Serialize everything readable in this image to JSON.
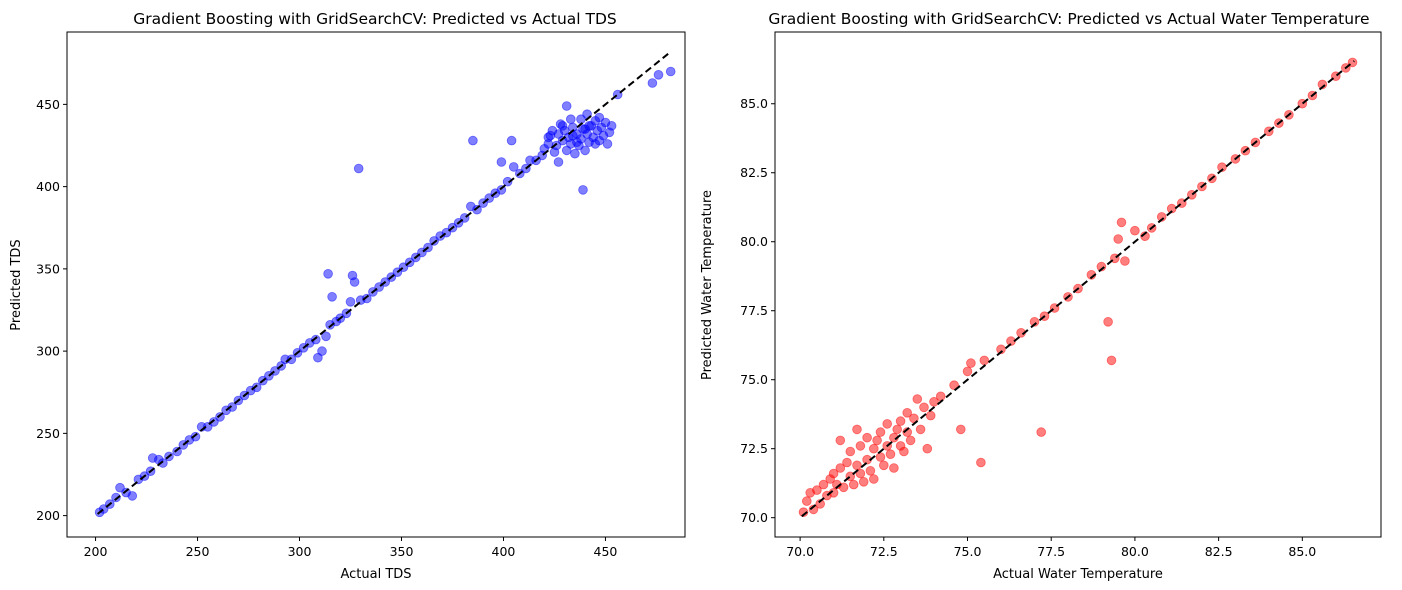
{
  "chart_data": [
    {
      "type": "scatter",
      "title": "Gradient Boosting with GridSearchCV: Predicted vs Actual TDS",
      "xlabel": "Actual TDS",
      "ylabel": "Predicted TDS",
      "xlim": [
        186,
        489
      ],
      "ylim": [
        187,
        494
      ],
      "xticks": [
        200,
        250,
        300,
        350,
        400,
        450
      ],
      "yticks": [
        200,
        250,
        300,
        350,
        400,
        450
      ],
      "tick_labels_x": [
        "200",
        "250",
        "300",
        "350",
        "400",
        "450"
      ],
      "tick_labels_y": [
        "200",
        "250",
        "300",
        "350",
        "400",
        "450"
      ],
      "marker_color": "#0000ff",
      "marker_alpha": 0.5,
      "reference_line": {
        "from": [
          201,
          201
        ],
        "to": [
          482,
          482
        ],
        "style": "dashed",
        "color": "#000000"
      },
      "grid": false,
      "series": [
        {
          "color": "#0000ff",
          "points": [
            [
              202,
              202
            ],
            [
              204,
              204
            ],
            [
              207,
              207
            ],
            [
              210,
              211
            ],
            [
              212,
              217
            ],
            [
              215,
              214
            ],
            [
              218,
              212
            ],
            [
              221,
              222
            ],
            [
              224,
              224
            ],
            [
              227,
              227
            ],
            [
              228,
              235
            ],
            [
              231,
              234
            ],
            [
              233,
              232
            ],
            [
              236,
              236
            ],
            [
              240,
              239
            ],
            [
              243,
              243
            ],
            [
              246,
              246
            ],
            [
              249,
              248
            ],
            [
              252,
              254
            ],
            [
              255,
              254
            ],
            [
              258,
              257
            ],
            [
              261,
              260
            ],
            [
              264,
              264
            ],
            [
              267,
              266
            ],
            [
              270,
              270
            ],
            [
              273,
              273
            ],
            [
              276,
              276
            ],
            [
              279,
              278
            ],
            [
              282,
              282
            ],
            [
              285,
              285
            ],
            [
              288,
              288
            ],
            [
              291,
              291
            ],
            [
              293,
              295
            ],
            [
              296,
              295
            ],
            [
              299,
              299
            ],
            [
              302,
              302
            ],
            [
              305,
              305
            ],
            [
              308,
              307
            ],
            [
              309,
              296
            ],
            [
              311,
              300
            ],
            [
              313,
              309
            ],
            [
              314,
              347
            ],
            [
              315,
              316
            ],
            [
              316,
              333
            ],
            [
              318,
              318
            ],
            [
              320,
              320
            ],
            [
              323,
              323
            ],
            [
              325,
              330
            ],
            [
              326,
              346
            ],
            [
              327,
              342
            ],
            [
              329,
              411
            ],
            [
              330,
              331
            ],
            [
              333,
              332
            ],
            [
              336,
              336
            ],
            [
              339,
              339
            ],
            [
              342,
              342
            ],
            [
              345,
              345
            ],
            [
              348,
              348
            ],
            [
              351,
              351
            ],
            [
              354,
              354
            ],
            [
              357,
              357
            ],
            [
              360,
              360
            ],
            [
              363,
              363
            ],
            [
              366,
              367
            ],
            [
              369,
              370
            ],
            [
              372,
              372
            ],
            [
              375,
              375
            ],
            [
              378,
              378
            ],
            [
              381,
              381
            ],
            [
              384,
              388
            ],
            [
              385,
              428
            ],
            [
              387,
              386
            ],
            [
              390,
              390
            ],
            [
              393,
              393
            ],
            [
              396,
              396
            ],
            [
              399,
              398
            ],
            [
              399,
              415
            ],
            [
              402,
              403
            ],
            [
              404,
              428
            ],
            [
              405,
              412
            ],
            [
              408,
              408
            ],
            [
              411,
              411
            ],
            [
              413,
              416
            ],
            [
              416,
              416
            ],
            [
              419,
              419
            ],
            [
              420,
              423
            ],
            [
              422,
              426
            ],
            [
              423,
              431
            ],
            [
              424,
              434
            ],
            [
              425,
              421
            ],
            [
              426,
              425
            ],
            [
              427,
              432
            ],
            [
              428,
              438
            ],
            [
              429,
              428
            ],
            [
              430,
              434
            ],
            [
              431,
              422
            ],
            [
              432,
              430
            ],
            [
              433,
              426
            ],
            [
              434,
              436
            ],
            [
              435,
              420
            ],
            [
              436,
              432
            ],
            [
              437,
              425
            ],
            [
              438,
              441
            ],
            [
              438,
              429
            ],
            [
              439,
              435
            ],
            [
              439,
              398
            ],
            [
              440,
              422
            ],
            [
              441,
              444
            ],
            [
              441,
              432
            ],
            [
              442,
              427
            ],
            [
              443,
              437
            ],
            [
              444,
              430
            ],
            [
              445,
              440
            ],
            [
              446,
              434
            ],
            [
              447,
              428
            ],
            [
              448,
              436
            ],
            [
              449,
              431
            ],
            [
              450,
              439
            ],
            [
              451,
              426
            ],
            [
              452,
              433
            ],
            [
              453,
              437
            ],
            [
              456,
              456
            ],
            [
              431,
              449
            ],
            [
              427,
              415
            ],
            [
              433,
              441
            ],
            [
              436,
              427
            ],
            [
              422,
              430
            ],
            [
              440,
              435
            ],
            [
              445,
              426
            ],
            [
              434,
              431
            ],
            [
              429,
              437
            ],
            [
              447,
              442
            ],
            [
              442,
              437
            ],
            [
              473,
              463
            ],
            [
              476,
              468
            ],
            [
              482,
              470
            ]
          ]
        }
      ]
    },
    {
      "type": "scatter",
      "title": "Gradient Boosting with GridSearchCV: Predicted vs Actual Water Temperature",
      "xlabel": "Actual Water Temperature",
      "ylabel": "Predicted Water Temperature",
      "xlim": [
        69.25,
        87.35
      ],
      "ylim": [
        69.3,
        87.6
      ],
      "xticks": [
        70.0,
        72.5,
        75.0,
        77.5,
        80.0,
        82.5,
        85.0
      ],
      "yticks": [
        70.0,
        72.5,
        75.0,
        77.5,
        80.0,
        82.5,
        85.0
      ],
      "tick_labels_x": [
        "70.0",
        "72.5",
        "75.0",
        "77.5",
        "80.0",
        "82.5",
        "85.0"
      ],
      "tick_labels_y": [
        "70.0",
        "72.5",
        "75.0",
        "77.5",
        "80.0",
        "82.5",
        "85.0"
      ],
      "marker_color": "#ff0000",
      "marker_alpha": 0.5,
      "reference_line": {
        "from": [
          70.05,
          70.05
        ],
        "to": [
          86.55,
          86.55
        ],
        "style": "dashed",
        "color": "#000000"
      },
      "grid": false,
      "series": [
        {
          "color": "#ff0000",
          "points": [
            [
              70.1,
              70.2
            ],
            [
              70.2,
              70.6
            ],
            [
              70.3,
              70.9
            ],
            [
              70.4,
              70.3
            ],
            [
              70.5,
              71.0
            ],
            [
              70.6,
              70.5
            ],
            [
              70.7,
              71.2
            ],
            [
              70.8,
              70.8
            ],
            [
              70.9,
              71.4
            ],
            [
              71.0,
              70.9
            ],
            [
              71.0,
              71.6
            ],
            [
              71.1,
              71.2
            ],
            [
              71.2,
              72.8
            ],
            [
              71.2,
              71.8
            ],
            [
              71.3,
              71.1
            ],
            [
              71.4,
              72.0
            ],
            [
              71.5,
              71.5
            ],
            [
              71.5,
              72.4
            ],
            [
              71.6,
              71.2
            ],
            [
              71.7,
              71.9
            ],
            [
              71.7,
              73.2
            ],
            [
              71.8,
              71.6
            ],
            [
              71.8,
              72.6
            ],
            [
              71.9,
              71.3
            ],
            [
              72.0,
              72.1
            ],
            [
              72.0,
              72.9
            ],
            [
              72.1,
              71.7
            ],
            [
              72.2,
              72.5
            ],
            [
              72.2,
              71.4
            ],
            [
              72.3,
              72.8
            ],
            [
              72.4,
              72.2
            ],
            [
              72.4,
              73.1
            ],
            [
              72.5,
              71.9
            ],
            [
              72.6,
              72.6
            ],
            [
              72.6,
              73.4
            ],
            [
              72.7,
              72.3
            ],
            [
              72.8,
              72.9
            ],
            [
              72.8,
              71.8
            ],
            [
              72.9,
              73.2
            ],
            [
              73.0,
              72.6
            ],
            [
              73.0,
              73.5
            ],
            [
              73.1,
              72.4
            ],
            [
              73.2,
              73.1
            ],
            [
              73.2,
              73.8
            ],
            [
              73.3,
              72.8
            ],
            [
              73.4,
              73.6
            ],
            [
              73.5,
              74.3
            ],
            [
              73.6,
              73.2
            ],
            [
              73.7,
              74.0
            ],
            [
              73.8,
              72.5
            ],
            [
              73.9,
              73.7
            ],
            [
              74.0,
              74.2
            ],
            [
              74.2,
              74.4
            ],
            [
              74.6,
              74.8
            ],
            [
              74.8,
              73.2
            ],
            [
              75.0,
              75.3
            ],
            [
              75.1,
              75.6
            ],
            [
              75.4,
              72.0
            ],
            [
              75.5,
              75.7
            ],
            [
              76.0,
              76.1
            ],
            [
              76.3,
              76.4
            ],
            [
              76.6,
              76.7
            ],
            [
              77.0,
              77.1
            ],
            [
              77.2,
              73.1
            ],
            [
              77.3,
              77.3
            ],
            [
              77.6,
              77.6
            ],
            [
              78.0,
              78.0
            ],
            [
              78.3,
              78.3
            ],
            [
              78.7,
              78.8
            ],
            [
              79.0,
              79.1
            ],
            [
              79.2,
              77.1
            ],
            [
              79.3,
              75.7
            ],
            [
              79.4,
              79.4
            ],
            [
              79.5,
              80.1
            ],
            [
              79.6,
              80.7
            ],
            [
              79.7,
              79.3
            ],
            [
              80.0,
              80.4
            ],
            [
              80.3,
              80.2
            ],
            [
              80.5,
              80.5
            ],
            [
              80.8,
              80.9
            ],
            [
              81.1,
              81.2
            ],
            [
              81.4,
              81.4
            ],
            [
              81.7,
              81.7
            ],
            [
              82.0,
              82.0
            ],
            [
              82.3,
              82.3
            ],
            [
              82.6,
              82.7
            ],
            [
              83.0,
              83.0
            ],
            [
              83.3,
              83.3
            ],
            [
              83.6,
              83.6
            ],
            [
              84.0,
              84.0
            ],
            [
              84.3,
              84.3
            ],
            [
              84.6,
              84.6
            ],
            [
              85.0,
              85.0
            ],
            [
              85.3,
              85.3
            ],
            [
              85.6,
              85.7
            ],
            [
              86.0,
              86.0
            ],
            [
              86.3,
              86.3
            ],
            [
              86.5,
              86.5
            ]
          ]
        }
      ]
    }
  ]
}
